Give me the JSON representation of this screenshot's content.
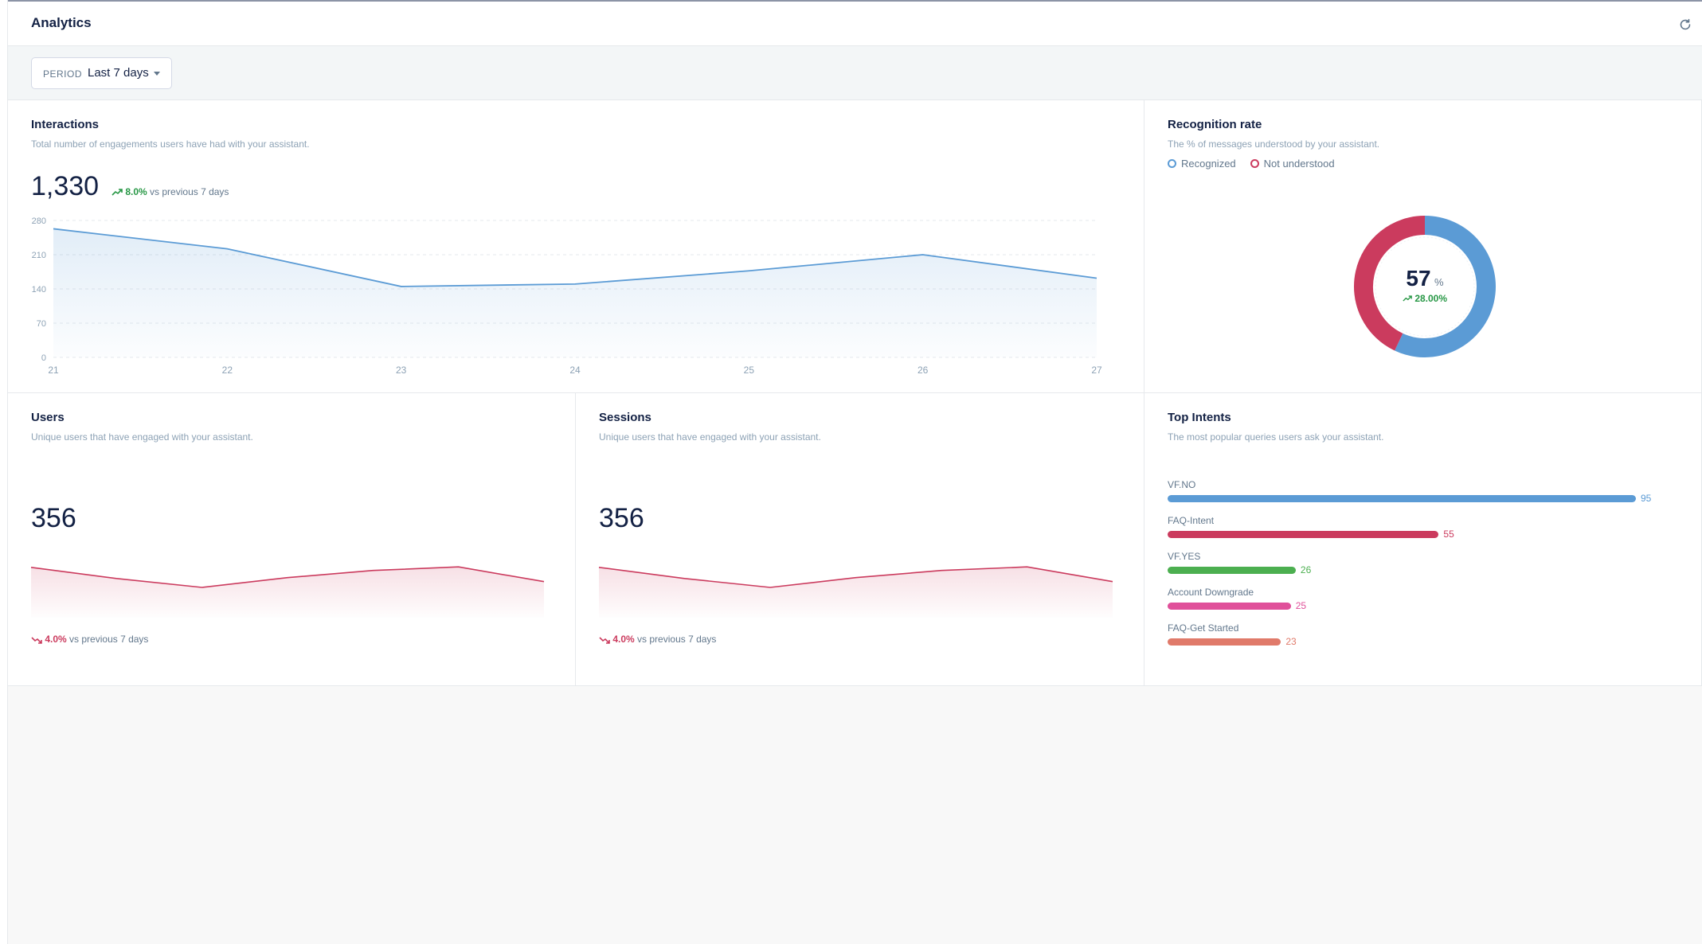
{
  "header": {
    "title": "Analytics"
  },
  "filter": {
    "period_label": "PERIOD",
    "period_value": "Last 7 days"
  },
  "interactions": {
    "title": "Interactions",
    "description": "Total number of engagements users have had with your assistant.",
    "total": "1,330",
    "trend_value": "8.0%",
    "trend_suffix": "vs previous 7 days",
    "color": "#5b9bd5"
  },
  "recognition": {
    "title": "Recognition rate",
    "description": "The % of messages understood by your assistant.",
    "legend": [
      {
        "label": "Recognized",
        "color": "#5b9bd5"
      },
      {
        "label": "Not understood",
        "color": "#cb3b5e"
      }
    ],
    "value": "57",
    "unit": "%",
    "delta": "28.00%"
  },
  "users": {
    "title": "Users",
    "description": "Unique users that have engaged with your assistant.",
    "total": "356",
    "trend_value": "4.0%",
    "trend_suffix": "vs previous 7 days"
  },
  "sessions": {
    "title": "Sessions",
    "description": "Unique users that have engaged with your assistant.",
    "total": "356",
    "trend_value": "4.0%",
    "trend_suffix": "vs previous 7 days"
  },
  "top_intents": {
    "title": "Top Intents",
    "description": "The most popular queries users ask your assistant.",
    "items": [
      {
        "label": "VF.NO",
        "count": 95,
        "color": "#5b9bd5"
      },
      {
        "label": "FAQ-Intent",
        "count": 55,
        "color": "#cb3b5e"
      },
      {
        "label": "VF.YES",
        "count": 26,
        "color": "#4caf50"
      },
      {
        "label": "Account Downgrade",
        "count": 25,
        "color": "#e0509a"
      },
      {
        "label": "FAQ-Get Started",
        "count": 23,
        "color": "#e07a6a"
      }
    ]
  },
  "chart_data": [
    {
      "type": "area",
      "x": [
        "21",
        "22",
        "23",
        "24",
        "25",
        "26",
        "27"
      ],
      "series": [
        {
          "values": [
            263,
            222,
            145,
            150,
            177,
            210,
            162
          ]
        }
      ],
      "yticks": [
        0,
        70,
        140,
        210,
        280
      ],
      "ylim": [
        0,
        280
      ],
      "grid": true
    },
    {
      "type": "pie",
      "categories": [
        "Recognized",
        "Not understood"
      ],
      "values": [
        57,
        43
      ],
      "colors": [
        "#5b9bd5",
        "#cb3b5e"
      ]
    },
    {
      "type": "area",
      "series": [
        {
          "values": [
            0.95,
            0.7,
            0.5,
            0.72,
            0.88,
            0.96,
            0.63
          ]
        }
      ],
      "ylim": [
        0,
        1
      ]
    },
    {
      "type": "area",
      "series": [
        {
          "values": [
            0.95,
            0.7,
            0.5,
            0.72,
            0.88,
            0.96,
            0.63
          ]
        }
      ],
      "ylim": [
        0,
        1
      ]
    },
    {
      "type": "bar",
      "categories": [
        "VF.NO",
        "FAQ-Intent",
        "VF.YES",
        "Account Downgrade",
        "FAQ-Get Started"
      ],
      "values": [
        95,
        55,
        26,
        25,
        23
      ]
    }
  ]
}
